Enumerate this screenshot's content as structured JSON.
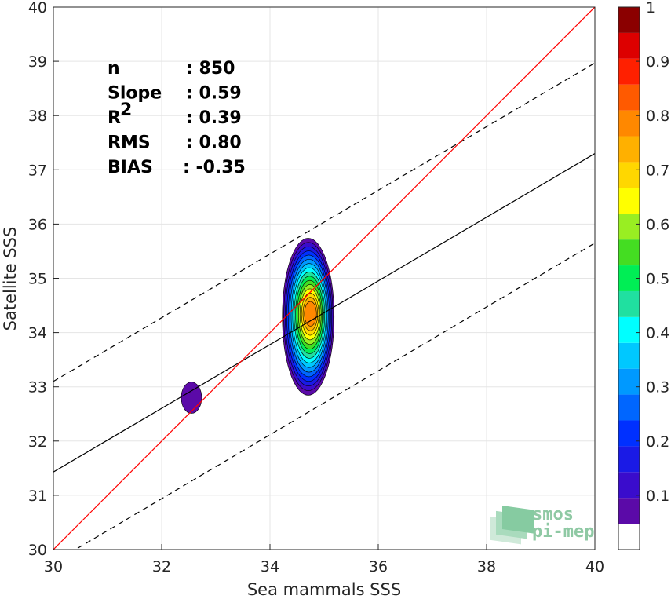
{
  "chart_data": {
    "type": "contour",
    "xlabel": "Sea mammals SSS",
    "ylabel": "Satellite SSS",
    "xlim": [
      30,
      40
    ],
    "ylim": [
      30,
      40
    ],
    "x_ticks": [
      "30",
      "32",
      "34",
      "36",
      "38",
      "40"
    ],
    "y_ticks": [
      "30",
      "31",
      "32",
      "33",
      "34",
      "35",
      "36",
      "37",
      "38",
      "39",
      "40"
    ],
    "grid": true,
    "stats": [
      {
        "label": "n",
        "value": ": 850"
      },
      {
        "label": "Slope",
        "value": ": 0.59"
      },
      {
        "label": "R",
        "sup": "2",
        "value": ": 0.39"
      },
      {
        "label": "RMS",
        "value": ": 0.80"
      },
      {
        "label": "BIAS",
        "value": ": -0.35"
      }
    ],
    "lines": {
      "identity": {
        "x": [
          30,
          40
        ],
        "y": [
          30,
          40
        ],
        "color": "#ff0000"
      },
      "fit": {
        "x": [
          30,
          40
        ],
        "y": [
          31.43,
          37.3
        ],
        "color": "#000000"
      },
      "upper_band": {
        "x": [
          30,
          40
        ],
        "y": [
          33.1,
          38.97
        ],
        "color": "#000000",
        "dash": true
      },
      "lower_band": {
        "x": [
          30,
          40
        ],
        "y": [
          29.76,
          35.65
        ],
        "color": "#000000",
        "dash": true
      }
    },
    "density_center": {
      "x": 34.75,
      "y": 34.35
    },
    "secondary_blob": {
      "x": 32.55,
      "y": 32.8
    },
    "colorbar": {
      "range": [
        0,
        1
      ],
      "ticks": [
        "0.1",
        "0.2",
        "0.3",
        "0.4",
        "0.5",
        "0.6",
        "0.7",
        "0.8",
        "0.9",
        "1"
      ],
      "colors": [
        "#ffffff",
        "#5b0aa8",
        "#3a0ccc",
        "#1a1ae6",
        "#0030ff",
        "#0066ff",
        "#0099ff",
        "#00c8ff",
        "#00ffff",
        "#20e0a0",
        "#00ee55",
        "#44dd22",
        "#99ee22",
        "#ffff00",
        "#ffd700",
        "#ffb000",
        "#ff8800",
        "#ff5a00",
        "#ff2000",
        "#dd0000",
        "#8b0000"
      ]
    }
  },
  "logo": {
    "line1": "smos",
    "line2": "pi-mep"
  },
  "colors": {
    "identity": "#ff0000",
    "grid": "#e5e5e5",
    "axis": "#262626",
    "logo": "#8fc9a4"
  }
}
